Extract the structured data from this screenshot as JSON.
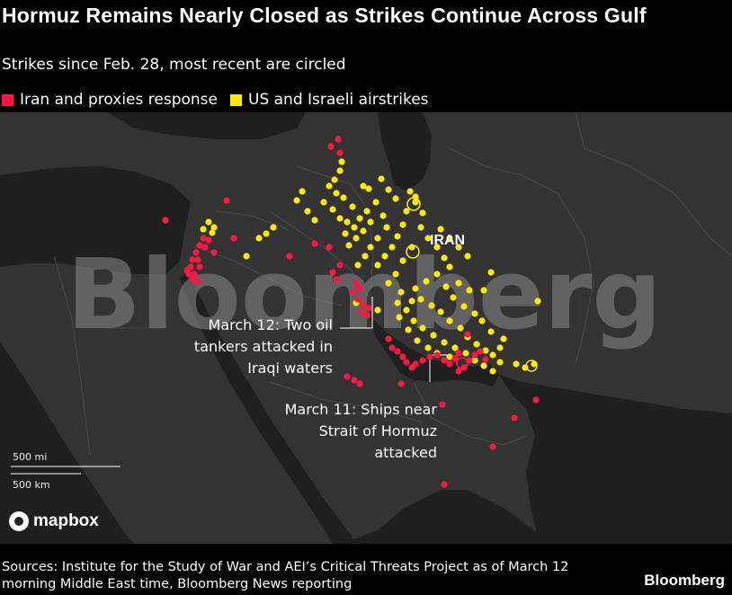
{
  "header": {
    "title": "Hormuz Remains Nearly Closed as Strikes Continue Across Gulf",
    "subtitle": "Strikes since Feb. 28, most recent are circled"
  },
  "legend": [
    {
      "label": "Iran and proxies response",
      "color": "#ff1744"
    },
    {
      "label": "US and Israeli airstrikes",
      "color": "#ffeb00"
    }
  ],
  "map": {
    "watermark": "Bloomberg",
    "country_label": "IRAN",
    "annotations": [
      {
        "lines": [
          "March 12: Two oil",
          "tankers attacked in",
          "Iraqi waters"
        ]
      },
      {
        "lines": [
          "March 11: Ships near",
          "Strait of Hormuz",
          "attacked"
        ]
      }
    ],
    "scale": {
      "miles": "500 mi",
      "km": "500 km"
    },
    "attribution": "mapbox",
    "colors": {
      "land": "#333333",
      "water": "#1f1f1f",
      "border": "#4a4a4a"
    }
  },
  "footer": {
    "source": "Sources: Institute for the Study of War and AEI’s Critical Threats Project as of March 12 morning Middle East time, Bloomberg News reporting",
    "brand": "Bloomberg"
  }
}
